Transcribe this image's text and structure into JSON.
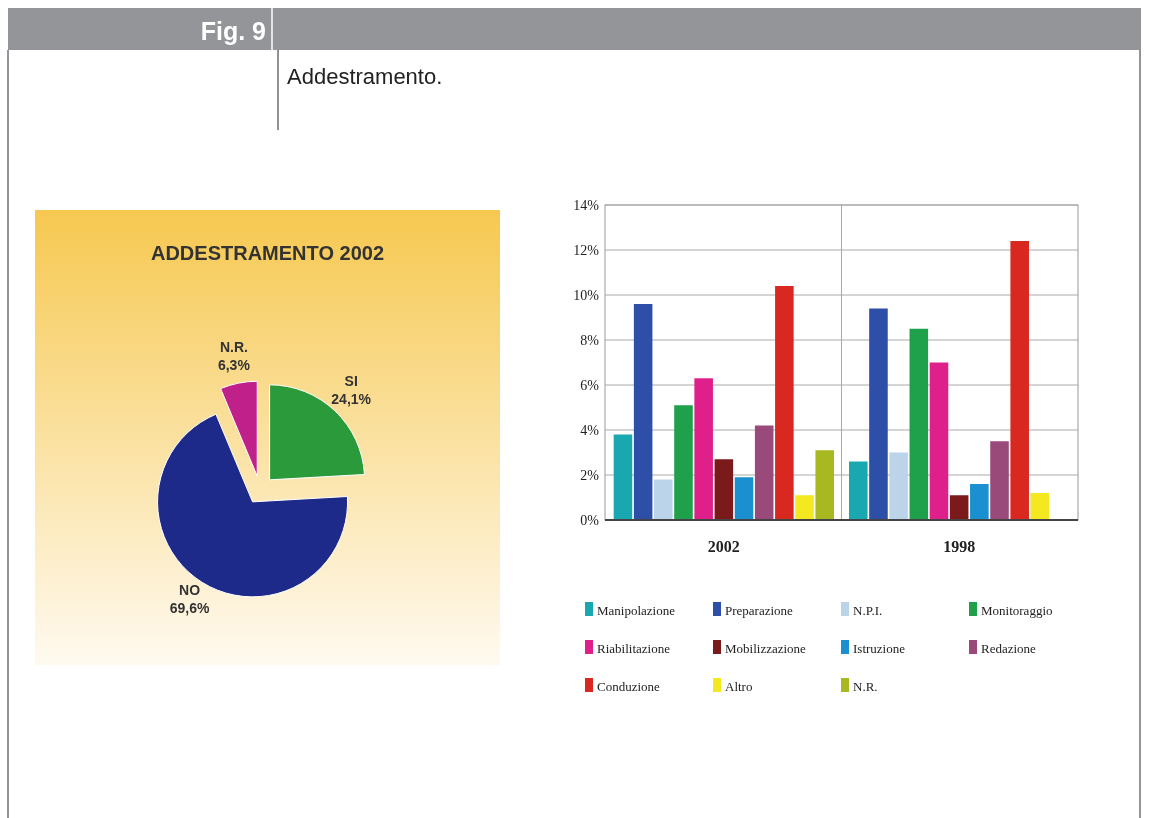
{
  "chart_data": [
    {
      "type": "pie",
      "title": "ADDESTRAMENTO 2002",
      "categories": [
        "SI",
        "NO",
        "N.R."
      ],
      "values": [
        24.1,
        69.6,
        6.3
      ],
      "colors": [
        "#2a9a3a",
        "#1e2a8a",
        "#c0208a"
      ],
      "value_labels": [
        "24,1%",
        "69,6%",
        "6,3%"
      ],
      "annotations": [
        "Fig. 9",
        "Addestramento."
      ]
    },
    {
      "type": "bar",
      "categories": [
        "2002",
        "1998"
      ],
      "ylim": [
        0,
        14
      ],
      "yticks": [
        {
          "value": 0,
          "label": "0%"
        },
        {
          "value": 2,
          "label": "2%"
        },
        {
          "value": 4,
          "label": "4%"
        },
        {
          "value": 6,
          "label": "6%"
        },
        {
          "value": 8,
          "label": "8%"
        },
        {
          "value": 10,
          "label": "10%"
        },
        {
          "value": 12,
          "label": "12%"
        },
        {
          "value": 14,
          "label": "14%"
        }
      ],
      "grid": true,
      "legend": "bottom",
      "series": [
        {
          "name": "Manipolazione",
          "color": "#1aa8b0",
          "values": [
            3.8,
            2.6
          ]
        },
        {
          "name": "Preparazione",
          "color": "#2e4fa8",
          "values": [
            9.6,
            9.4
          ]
        },
        {
          "name": "N.P.I.",
          "color": "#bcd4ea",
          "values": [
            1.8,
            3.0
          ]
        },
        {
          "name": "Monitoraggio",
          "color": "#1fa04a",
          "values": [
            5.1,
            8.5
          ]
        },
        {
          "name": "Riabilitazione",
          "color": "#e0208a",
          "values": [
            6.3,
            7.0
          ]
        },
        {
          "name": "Mobilizzazione",
          "color": "#7a1a1a",
          "values": [
            2.7,
            1.1
          ]
        },
        {
          "name": "Istruzione",
          "color": "#1a90d0",
          "values": [
            1.9,
            1.6
          ]
        },
        {
          "name": "Redazione",
          "color": "#9a4a7a",
          "values": [
            4.2,
            3.5
          ]
        },
        {
          "name": "Conduzione",
          "color": "#d82820",
          "values": [
            10.4,
            12.4
          ]
        },
        {
          "name": "Altro",
          "color": "#f4e820",
          "values": [
            1.1,
            1.2
          ]
        },
        {
          "name": "N.R.",
          "color": "#a8b820",
          "values": [
            3.1,
            0
          ]
        }
      ]
    }
  ]
}
